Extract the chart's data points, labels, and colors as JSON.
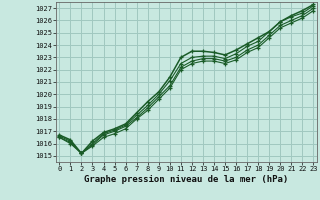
{
  "title": "Graphe pression niveau de la mer (hPa)",
  "bg_color": "#c8e8e0",
  "plot_bg_color": "#c8e8e0",
  "grid_color": "#a0c8c0",
  "line_color": "#1a5c28",
  "xlim": [
    -0.3,
    23.3
  ],
  "ylim": [
    1014.5,
    1027.5
  ],
  "yticks": [
    1015,
    1016,
    1017,
    1018,
    1019,
    1020,
    1021,
    1022,
    1023,
    1024,
    1025,
    1026,
    1027
  ],
  "xticks": [
    0,
    1,
    2,
    3,
    4,
    5,
    6,
    7,
    8,
    9,
    10,
    11,
    12,
    13,
    14,
    15,
    16,
    17,
    18,
    19,
    20,
    21,
    22,
    23
  ],
  "title_fontsize": 6.5,
  "tick_fontsize": 5.0,
  "series": [
    [
      1016.7,
      1016.3,
      1015.2,
      1016.2,
      1016.9,
      1017.2,
      1017.6,
      1018.5,
      1019.4,
      1020.2,
      1021.4,
      1023.0,
      1023.5,
      1023.5,
      1023.4,
      1023.2,
      1023.6,
      1024.1,
      1024.6,
      1025.1,
      1025.9,
      1026.4,
      1026.8,
      1027.3
    ],
    [
      1016.6,
      1016.2,
      1015.2,
      1016.0,
      1016.8,
      1017.1,
      1017.5,
      1018.3,
      1019.1,
      1020.0,
      1021.1,
      1022.5,
      1023.0,
      1023.1,
      1023.1,
      1022.9,
      1023.3,
      1023.9,
      1024.3,
      1025.1,
      1025.9,
      1026.3,
      1026.6,
      1027.2
    ],
    [
      1016.5,
      1016.1,
      1015.2,
      1015.9,
      1016.7,
      1017.0,
      1017.4,
      1018.1,
      1018.9,
      1019.8,
      1020.7,
      1022.2,
      1022.7,
      1022.9,
      1022.9,
      1022.7,
      1023.0,
      1023.6,
      1024.0,
      1024.8,
      1025.6,
      1026.0,
      1026.4,
      1027.0
    ],
    [
      1016.5,
      1016.0,
      1015.2,
      1015.8,
      1016.5,
      1016.8,
      1017.2,
      1018.0,
      1018.7,
      1019.6,
      1020.5,
      1022.0,
      1022.5,
      1022.7,
      1022.7,
      1022.5,
      1022.8,
      1023.4,
      1023.8,
      1024.6,
      1025.4,
      1025.8,
      1026.2,
      1026.8
    ]
  ]
}
